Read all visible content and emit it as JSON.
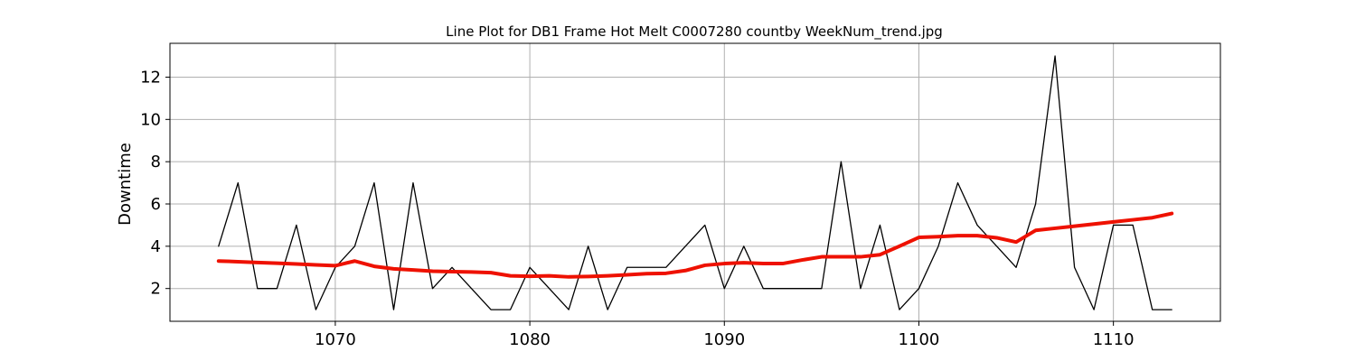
{
  "chart_data": {
    "type": "line",
    "title": "Line Plot for DB1 Frame Hot Melt C0007280 countby WeekNum_trend.jpg",
    "xlabel": "",
    "ylabel": "Downtime",
    "xlim": [
      1061.5,
      1115.5
    ],
    "ylim": [
      0.45,
      13.6
    ],
    "xticks": [
      1070,
      1080,
      1090,
      1100,
      1110
    ],
    "yticks": [
      2,
      4,
      6,
      8,
      10,
      12
    ],
    "grid": true,
    "legend": "none",
    "x": [
      1064,
      1065,
      1066,
      1067,
      1068,
      1069,
      1070,
      1071,
      1072,
      1073,
      1074,
      1075,
      1076,
      1077,
      1078,
      1079,
      1080,
      1081,
      1082,
      1083,
      1084,
      1085,
      1086,
      1087,
      1088,
      1089,
      1090,
      1091,
      1092,
      1093,
      1094,
      1095,
      1096,
      1097,
      1098,
      1099,
      1100,
      1101,
      1102,
      1103,
      1104,
      1105,
      1106,
      1107,
      1108,
      1109,
      1110,
      1111,
      1112,
      1113
    ],
    "series": [
      {
        "color": "#000000",
        "values": [
          4,
          7,
          2,
          2,
          5,
          1,
          3,
          4,
          7,
          1,
          7,
          2,
          3,
          2,
          1,
          1,
          3,
          2,
          1,
          4,
          1,
          3,
          3,
          3,
          4,
          5,
          2,
          4,
          2,
          2,
          2,
          2,
          8,
          2,
          5,
          1,
          2,
          4,
          7,
          5,
          4,
          3,
          6,
          13,
          3,
          1,
          5,
          5,
          1,
          1
        ]
      },
      {
        "color": "#ee1100",
        "values": [
          3.3,
          3.27,
          3.23,
          3.2,
          3.16,
          3.12,
          3.08,
          3.3,
          3.05,
          2.93,
          2.88,
          2.82,
          2.8,
          2.78,
          2.75,
          2.6,
          2.58,
          2.6,
          2.55,
          2.57,
          2.6,
          2.65,
          2.7,
          2.72,
          2.85,
          3.1,
          3.18,
          3.22,
          3.18,
          3.18,
          3.35,
          3.5,
          3.5,
          3.5,
          3.6,
          4.0,
          4.42,
          4.45,
          4.5,
          4.5,
          4.4,
          4.2,
          4.75,
          4.85,
          4.95,
          5.05,
          5.15,
          5.25,
          5.35,
          5.55
        ]
      }
    ]
  }
}
